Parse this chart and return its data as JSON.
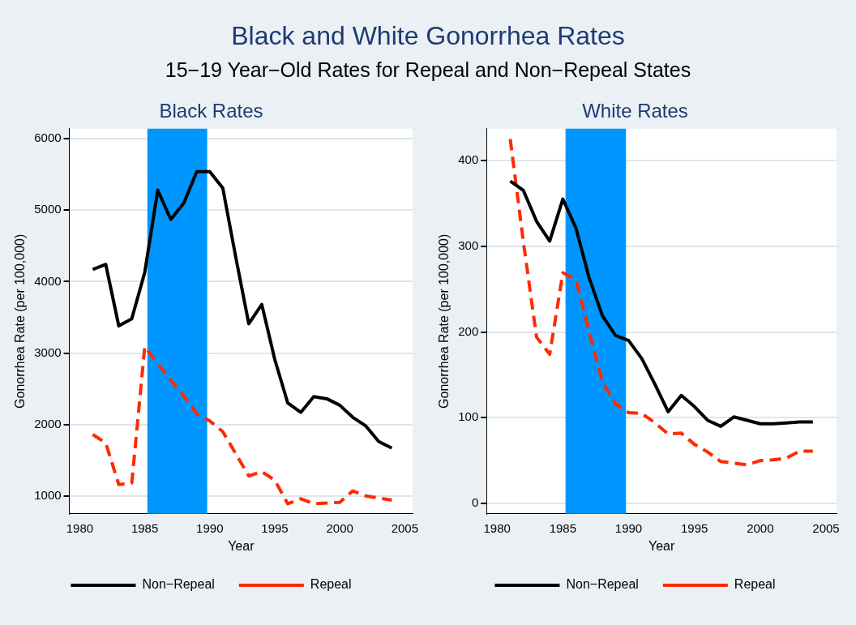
{
  "chart_data": [
    {
      "type": "line",
      "title": "Black Rates",
      "annotations": [
        "Black and White Gonorrhea Rates",
        "15−19 Year−Old Rates for Repeal and Non−Repeal States"
      ],
      "xlabel": "Year",
      "ylabel": "Gonorrhea Rate (per 100,000)",
      "x": [
        1981,
        1982,
        1983,
        1984,
        1985,
        1986,
        1987,
        1988,
        1989,
        1990,
        1991,
        1992,
        1993,
        1994,
        1995,
        1996,
        1997,
        1998,
        1999,
        2000,
        2001,
        2002,
        2003,
        2004
      ],
      "series": [
        {
          "name": "Non−Repeal",
          "color": "#000000",
          "line_style": "solid",
          "values": [
            4170,
            4240,
            3380,
            3480,
            4130,
            5280,
            4870,
            5100,
            5540,
            5540,
            5310,
            4340,
            3410,
            3680,
            2910,
            2300,
            2170,
            2390,
            2360,
            2270,
            2100,
            1980,
            1760,
            1670
          ]
        },
        {
          "name": "Repeal",
          "color": "#ff2a00",
          "line_style": "dashed",
          "values": [
            1860,
            1740,
            1160,
            1180,
            3090,
            2850,
            2620,
            2400,
            2150,
            2050,
            1900,
            1590,
            1280,
            1340,
            1220,
            890,
            960,
            890,
            900,
            910,
            1070,
            1000,
            970,
            940
          ]
        }
      ],
      "xlim": [
        1979.2,
        2005.6
      ],
      "xticks": [
        1980,
        1985,
        1990,
        1995,
        2000,
        2005
      ],
      "ylim": [
        750,
        6140
      ],
      "yticks": [
        1000,
        2000,
        3000,
        4000,
        5000,
        6000
      ],
      "bands": [
        {
          "axis": "x",
          "from": 1985.2,
          "to": 1989.8,
          "color": "#0096ff"
        }
      ],
      "grid": "y",
      "legend": "bottom",
      "marker": "none"
    },
    {
      "type": "line",
      "title": "White Rates",
      "xlabel": "Year",
      "ylabel": "Gonorrhea Rate (per 100,000)",
      "x": [
        1981,
        1982,
        1983,
        1984,
        1985,
        1986,
        1987,
        1988,
        1989,
        1990,
        1991,
        1992,
        1993,
        1994,
        1995,
        1996,
        1997,
        1998,
        1999,
        2000,
        2001,
        2002,
        2003,
        2004
      ],
      "series": [
        {
          "name": "Non−Repeal",
          "color": "#000000",
          "line_style": "solid",
          "values": [
            376,
            365,
            329,
            306,
            355,
            321,
            263,
            219,
            196,
            190,
            169,
            139,
            107,
            126,
            113,
            97,
            90,
            101,
            97,
            93,
            93,
            94,
            95,
            95
          ]
        },
        {
          "name": "Repeal",
          "color": "#ff2a00",
          "line_style": "dashed",
          "values": [
            425,
            305,
            194,
            174,
            269,
            261,
            200,
            142,
            116,
            106,
            105,
            94,
            81,
            82,
            69,
            60,
            49,
            47,
            45,
            50,
            51,
            53,
            61,
            61
          ]
        }
      ],
      "xlim": [
        1979.2,
        2005.8
      ],
      "xticks": [
        1980,
        1985,
        1990,
        1995,
        2000,
        2005
      ],
      "ylim": [
        -12,
        437
      ],
      "yticks": [
        0,
        100,
        200,
        300,
        400
      ],
      "bands": [
        {
          "axis": "x",
          "from": 1985.2,
          "to": 1989.8,
          "color": "#0096ff"
        }
      ],
      "grid": "y",
      "legend": "bottom",
      "marker": "none"
    }
  ]
}
